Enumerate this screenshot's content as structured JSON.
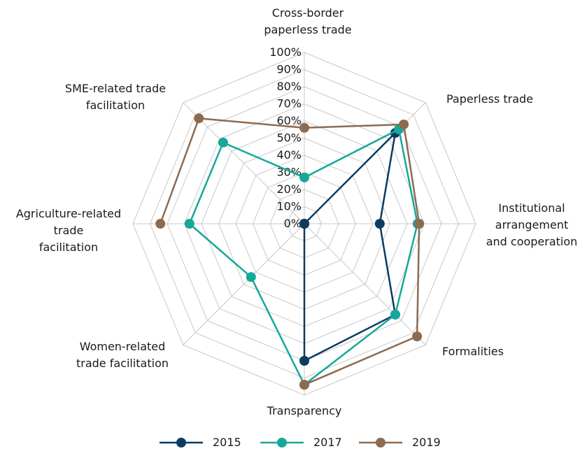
{
  "chart_data": {
    "type": "radar",
    "categories": [
      "Cross-border\npaperless trade",
      "Paperless trade",
      "Institutional\narrangement\nand cooperation",
      "Formalities",
      "Transparency",
      "Women-related\ntrade facilitation",
      "Agriculture-related\ntrade\nfacilitation",
      "SME-related trade\nfacilitation"
    ],
    "series": [
      {
        "name": "2015",
        "color": "#0d3b5e",
        "values": [
          0,
          75,
          44,
          75,
          80,
          0,
          0,
          0
        ]
      },
      {
        "name": "2017",
        "color": "#17a89b",
        "values": [
          27,
          78,
          66,
          75,
          94,
          44,
          67,
          67
        ]
      },
      {
        "name": "2019",
        "color": "#8c6b50",
        "values": [
          56,
          82,
          67,
          93,
          94,
          null,
          84,
          87
        ]
      }
    ],
    "ylim": [
      0,
      100
    ],
    "yticks": [
      {
        "value": 0,
        "label": "0%"
      },
      {
        "value": 10,
        "label": "10%"
      },
      {
        "value": 20,
        "label": "20%"
      },
      {
        "value": 30,
        "label": "30%"
      },
      {
        "value": 40,
        "label": "40%"
      },
      {
        "value": 50,
        "label": "50%"
      },
      {
        "value": 60,
        "label": "60%"
      },
      {
        "value": 70,
        "label": "70%"
      },
      {
        "value": 80,
        "label": "80%"
      },
      {
        "value": 90,
        "label": "90%"
      },
      {
        "value": 100,
        "label": "100%"
      }
    ],
    "grid": true,
    "legend": "bottom"
  }
}
